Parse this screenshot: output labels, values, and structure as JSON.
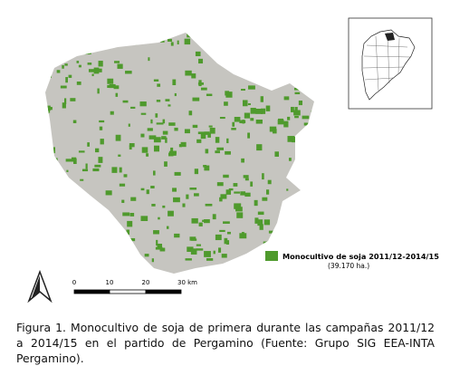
{
  "legend": {
    "label": "Monocultivo de soja 2011/12-2014/15",
    "area": "(39.170 ha.)"
  },
  "scale_bar": {
    "labels": [
      "0",
      "10",
      "20",
      "30 km"
    ]
  },
  "caption": "Figura 1. Monocultivo de soja de primera durante las campañas 2011/12 a 2014/15 en el partido de Pergamino (Fuente: Grupo SIG EEA-INTA Pergamino)."
}
